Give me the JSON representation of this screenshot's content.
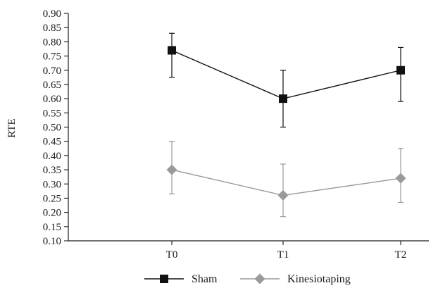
{
  "chart_data": {
    "type": "line",
    "title": "",
    "xlabel": "",
    "ylabel": "RTE",
    "categories": [
      "T0",
      "T1",
      "T2"
    ],
    "ylim": [
      0.1,
      0.9
    ],
    "ytick_step": 0.05,
    "yticks": [
      "0.10",
      "0.15",
      "0.20",
      "0.25",
      "0.30",
      "0.35",
      "0.40",
      "0.45",
      "0.50",
      "0.55",
      "0.60",
      "0.65",
      "0.70",
      "0.75",
      "0.80",
      "0.85",
      "0.90"
    ],
    "grid": false,
    "legend_position": "bottom",
    "series": [
      {
        "name": "Sham",
        "marker": "square",
        "color": "#111111",
        "values": [
          0.77,
          0.6,
          0.7
        ],
        "error_upper": [
          0.83,
          0.7,
          0.78
        ],
        "error_lower": [
          0.675,
          0.5,
          0.59
        ]
      },
      {
        "name": "Kinesiotaping",
        "marker": "diamond",
        "color": "#9a9a9a",
        "values": [
          0.35,
          0.26,
          0.32
        ],
        "error_upper": [
          0.45,
          0.37,
          0.425
        ],
        "error_lower": [
          0.265,
          0.185,
          0.235
        ]
      }
    ]
  }
}
